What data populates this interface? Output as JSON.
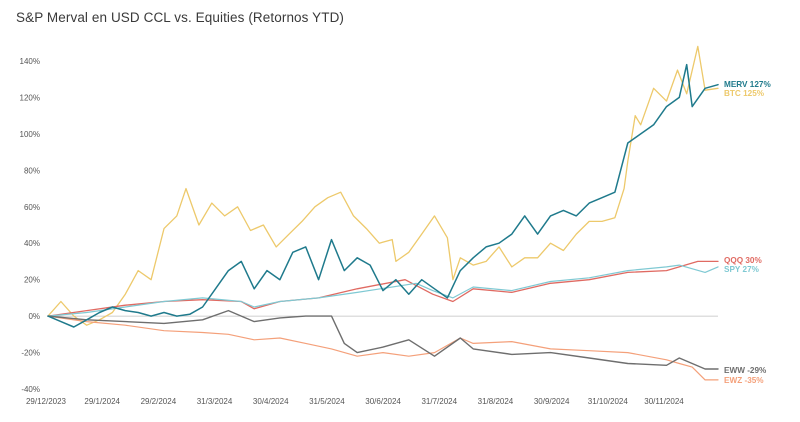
{
  "chart_data": {
    "type": "line",
    "title": "S&P Merval en USD CCL vs. Equities (Retornos YTD)",
    "xlabel": "",
    "ylabel": "",
    "ylim": [
      -40,
      140
    ],
    "y_ticks": [
      -40,
      -20,
      0,
      20,
      40,
      60,
      80,
      100,
      120,
      140
    ],
    "y_tick_labels": [
      "-40%",
      "-20%",
      "0%",
      "20%",
      "40%",
      "60%",
      "80%",
      "100%",
      "120%",
      "140%"
    ],
    "x_tick_labels": [
      "29/12/2023",
      "29/1/2024",
      "29/2/2024",
      "31/3/2024",
      "30/4/2024",
      "31/5/2024",
      "30/6/2024",
      "31/7/2024",
      "31/8/2024",
      "30/9/2024",
      "31/10/2024",
      "30/11/2024"
    ],
    "grid": false,
    "series": [
      {
        "name": "BTC",
        "label": "BTC 125%",
        "color": "#EDC96B",
        "width": 1.3,
        "x": [
          "2023-12-29",
          "2024-01-05",
          "2024-01-12",
          "2024-01-19",
          "2024-01-26",
          "2024-02-02",
          "2024-02-09",
          "2024-02-16",
          "2024-02-23",
          "2024-03-01",
          "2024-03-08",
          "2024-03-13",
          "2024-03-20",
          "2024-03-27",
          "2024-04-03",
          "2024-04-10",
          "2024-04-17",
          "2024-04-24",
          "2024-05-01",
          "2024-05-08",
          "2024-05-15",
          "2024-05-22",
          "2024-05-29",
          "2024-06-05",
          "2024-06-12",
          "2024-06-19",
          "2024-06-26",
          "2024-07-03",
          "2024-07-05",
          "2024-07-12",
          "2024-07-19",
          "2024-07-26",
          "2024-08-02",
          "2024-08-05",
          "2024-08-09",
          "2024-08-16",
          "2024-08-23",
          "2024-08-30",
          "2024-09-06",
          "2024-09-13",
          "2024-09-20",
          "2024-09-27",
          "2024-10-04",
          "2024-10-11",
          "2024-10-18",
          "2024-10-25",
          "2024-11-01",
          "2024-11-06",
          "2024-11-08",
          "2024-11-12",
          "2024-11-15",
          "2024-11-22",
          "2024-11-29",
          "2024-12-05",
          "2024-12-10",
          "2024-12-16",
          "2024-12-20",
          "2024-12-27"
        ],
        "y": [
          0,
          8,
          0,
          -5,
          -2,
          2,
          12,
          25,
          20,
          48,
          55,
          70,
          50,
          62,
          55,
          60,
          47,
          50,
          38,
          45,
          52,
          60,
          65,
          68,
          55,
          48,
          40,
          42,
          30,
          35,
          45,
          55,
          43,
          20,
          32,
          28,
          30,
          38,
          27,
          32,
          32,
          40,
          36,
          45,
          52,
          52,
          54,
          70,
          85,
          110,
          105,
          125,
          118,
          135,
          122,
          148,
          124,
          125
        ]
      },
      {
        "name": "MERV",
        "label": "MERV 127%",
        "color": "#1F7A8C",
        "width": 1.5,
        "x": [
          "2023-12-29",
          "2024-01-05",
          "2024-01-12",
          "2024-01-19",
          "2024-01-26",
          "2024-02-02",
          "2024-02-09",
          "2024-02-16",
          "2024-02-23",
          "2024-03-01",
          "2024-03-08",
          "2024-03-15",
          "2024-03-22",
          "2024-03-29",
          "2024-04-05",
          "2024-04-12",
          "2024-04-19",
          "2024-04-26",
          "2024-05-03",
          "2024-05-10",
          "2024-05-17",
          "2024-05-24",
          "2024-05-31",
          "2024-06-07",
          "2024-06-14",
          "2024-06-21",
          "2024-06-28",
          "2024-07-05",
          "2024-07-12",
          "2024-07-19",
          "2024-07-26",
          "2024-08-02",
          "2024-08-09",
          "2024-08-16",
          "2024-08-23",
          "2024-08-30",
          "2024-09-06",
          "2024-09-13",
          "2024-09-20",
          "2024-09-27",
          "2024-10-04",
          "2024-10-11",
          "2024-10-18",
          "2024-10-25",
          "2024-11-01",
          "2024-11-08",
          "2024-11-15",
          "2024-11-22",
          "2024-11-29",
          "2024-12-06",
          "2024-12-10",
          "2024-12-13",
          "2024-12-20",
          "2024-12-27"
        ],
        "y": [
          0,
          -3,
          -6,
          -2,
          2,
          5,
          3,
          2,
          0,
          2,
          0,
          1,
          5,
          15,
          25,
          30,
          15,
          25,
          20,
          35,
          38,
          20,
          42,
          25,
          32,
          28,
          14,
          20,
          12,
          20,
          15,
          10,
          25,
          32,
          38,
          40,
          45,
          55,
          45,
          55,
          58,
          55,
          62,
          65,
          68,
          95,
          100,
          105,
          115,
          120,
          138,
          115,
          125,
          127
        ]
      },
      {
        "name": "QQQ",
        "label": "QQQ 30%",
        "color": "#E06A62",
        "width": 1.3,
        "x": [
          "2023-12-29",
          "2024-01-19",
          "2024-02-09",
          "2024-03-01",
          "2024-03-22",
          "2024-04-12",
          "2024-04-19",
          "2024-05-03",
          "2024-05-24",
          "2024-06-14",
          "2024-07-10",
          "2024-07-25",
          "2024-08-05",
          "2024-08-16",
          "2024-09-06",
          "2024-09-27",
          "2024-10-18",
          "2024-11-08",
          "2024-11-29",
          "2024-12-16",
          "2024-12-27"
        ],
        "y": [
          0,
          3,
          6,
          8,
          9,
          8,
          4,
          8,
          10,
          15,
          20,
          12,
          8,
          15,
          13,
          18,
          20,
          24,
          25,
          30,
          30
        ]
      },
      {
        "name": "SPY",
        "label": "SPY 27%",
        "color": "#7FC9D3",
        "width": 1.2,
        "x": [
          "2023-12-29",
          "2024-01-19",
          "2024-02-09",
          "2024-03-01",
          "2024-03-22",
          "2024-04-12",
          "2024-04-19",
          "2024-05-03",
          "2024-05-24",
          "2024-06-14",
          "2024-07-16",
          "2024-07-25",
          "2024-08-05",
          "2024-08-16",
          "2024-09-06",
          "2024-09-27",
          "2024-10-18",
          "2024-11-08",
          "2024-11-29",
          "2024-12-06",
          "2024-12-20",
          "2024-12-27"
        ],
        "y": [
          0,
          2,
          5,
          8,
          10,
          8,
          5,
          8,
          10,
          13,
          18,
          14,
          10,
          16,
          14,
          19,
          21,
          25,
          27,
          28,
          24,
          27
        ]
      },
      {
        "name": "EWW",
        "label": "EWW -29%",
        "color": "#6E6E6E",
        "width": 1.4,
        "x": [
          "2023-12-29",
          "2024-01-19",
          "2024-02-09",
          "2024-03-01",
          "2024-03-22",
          "2024-04-05",
          "2024-04-19",
          "2024-05-03",
          "2024-05-17",
          "2024-05-31",
          "2024-06-07",
          "2024-06-14",
          "2024-06-28",
          "2024-07-12",
          "2024-07-26",
          "2024-08-09",
          "2024-08-16",
          "2024-09-06",
          "2024-09-27",
          "2024-10-18",
          "2024-11-08",
          "2024-11-29",
          "2024-12-06",
          "2024-12-20",
          "2024-12-27"
        ],
        "y": [
          0,
          -2,
          -3,
          -4,
          -2,
          3,
          -3,
          -1,
          0,
          0,
          -15,
          -20,
          -17,
          -13,
          -22,
          -12,
          -18,
          -21,
          -20,
          -23,
          -26,
          -27,
          -23,
          -29,
          -29
        ]
      },
      {
        "name": "EWZ",
        "label": "EWZ -35%",
        "color": "#F4A07A",
        "width": 1.2,
        "x": [
          "2023-12-29",
          "2024-01-19",
          "2024-02-09",
          "2024-03-01",
          "2024-03-22",
          "2024-04-05",
          "2024-04-19",
          "2024-05-03",
          "2024-05-17",
          "2024-05-31",
          "2024-06-14",
          "2024-06-28",
          "2024-07-12",
          "2024-07-26",
          "2024-08-09",
          "2024-08-16",
          "2024-09-06",
          "2024-09-27",
          "2024-10-18",
          "2024-11-08",
          "2024-11-29",
          "2024-12-06",
          "2024-12-13",
          "2024-12-20",
          "2024-12-27"
        ],
        "y": [
          0,
          -3,
          -5,
          -8,
          -9,
          -10,
          -13,
          -12,
          -15,
          -18,
          -22,
          -20,
          -22,
          -20,
          -12,
          -15,
          -14,
          -18,
          -19,
          -20,
          -24,
          -26,
          -28,
          -35,
          -35
        ]
      }
    ]
  }
}
